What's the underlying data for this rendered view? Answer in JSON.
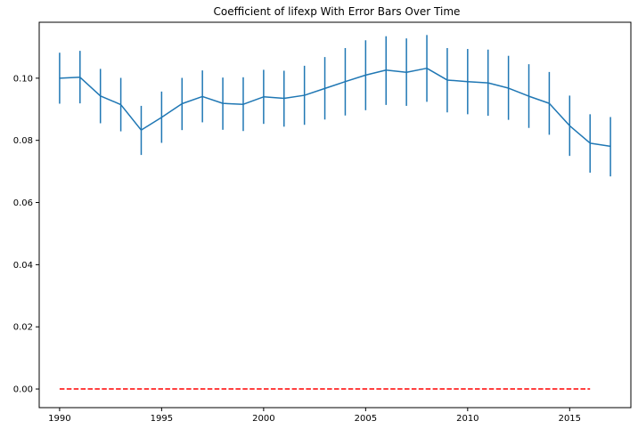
{
  "chart_data": {
    "type": "line",
    "title": "Coefficient of lifexp With Error Bars Over Time",
    "xlabel": "",
    "ylabel": "",
    "xlim": [
      1989.0,
      2018.0
    ],
    "ylim": [
      -0.006,
      0.118
    ],
    "xticks": [
      1990,
      1995,
      2000,
      2005,
      2010,
      2015
    ],
    "xtick_labels": [
      "1990",
      "1995",
      "2000",
      "2005",
      "2010",
      "2015"
    ],
    "yticks": [
      0.0,
      0.02,
      0.04,
      0.06,
      0.08,
      0.1
    ],
    "ytick_labels": [
      "0.00",
      "0.02",
      "0.04",
      "0.06",
      "0.08",
      "0.10"
    ],
    "grid": false,
    "series": [
      {
        "color": "#1f77b4",
        "style": "solid-with-errorbars",
        "x": [
          1990,
          1991,
          1992,
          1993,
          1994,
          1995,
          1996,
          1997,
          1998,
          1999,
          2000,
          2001,
          2002,
          2003,
          2004,
          2005,
          2006,
          2007,
          2008,
          2009,
          2010,
          2011,
          2012,
          2013,
          2014,
          2015,
          2016,
          2017
        ],
        "y": [
          0.1,
          0.1003,
          0.0943,
          0.0915,
          0.0833,
          0.0874,
          0.0918,
          0.0941,
          0.0919,
          0.0916,
          0.094,
          0.0935,
          0.0945,
          0.0967,
          0.0989,
          0.101,
          0.1026,
          0.1019,
          0.1032,
          0.0994,
          0.0989,
          0.0985,
          0.0968,
          0.0942,
          0.0919,
          0.0847,
          0.0791,
          0.0781
        ],
        "yerr_low": [
          0.0918,
          0.0919,
          0.0855,
          0.0829,
          0.0753,
          0.0792,
          0.0833,
          0.0858,
          0.0834,
          0.083,
          0.0853,
          0.0844,
          0.085,
          0.0867,
          0.088,
          0.0897,
          0.0914,
          0.0911,
          0.0924,
          0.089,
          0.0884,
          0.0879,
          0.0866,
          0.084,
          0.0818,
          0.075,
          0.0696,
          0.0684
        ],
        "yerr_high": [
          0.1082,
          0.1088,
          0.103,
          0.1001,
          0.0911,
          0.0957,
          0.1001,
          0.1025,
          0.1002,
          0.1003,
          0.1027,
          0.1024,
          0.104,
          0.1068,
          0.1097,
          0.1122,
          0.1135,
          0.1128,
          0.1139,
          0.1097,
          0.1094,
          0.1092,
          0.1072,
          0.1045,
          0.102,
          0.0944,
          0.0884,
          0.0875
        ]
      },
      {
        "color": "#ff0000",
        "style": "dashed",
        "x": [
          1990,
          2016
        ],
        "y": [
          0.0,
          0.0
        ]
      }
    ]
  }
}
